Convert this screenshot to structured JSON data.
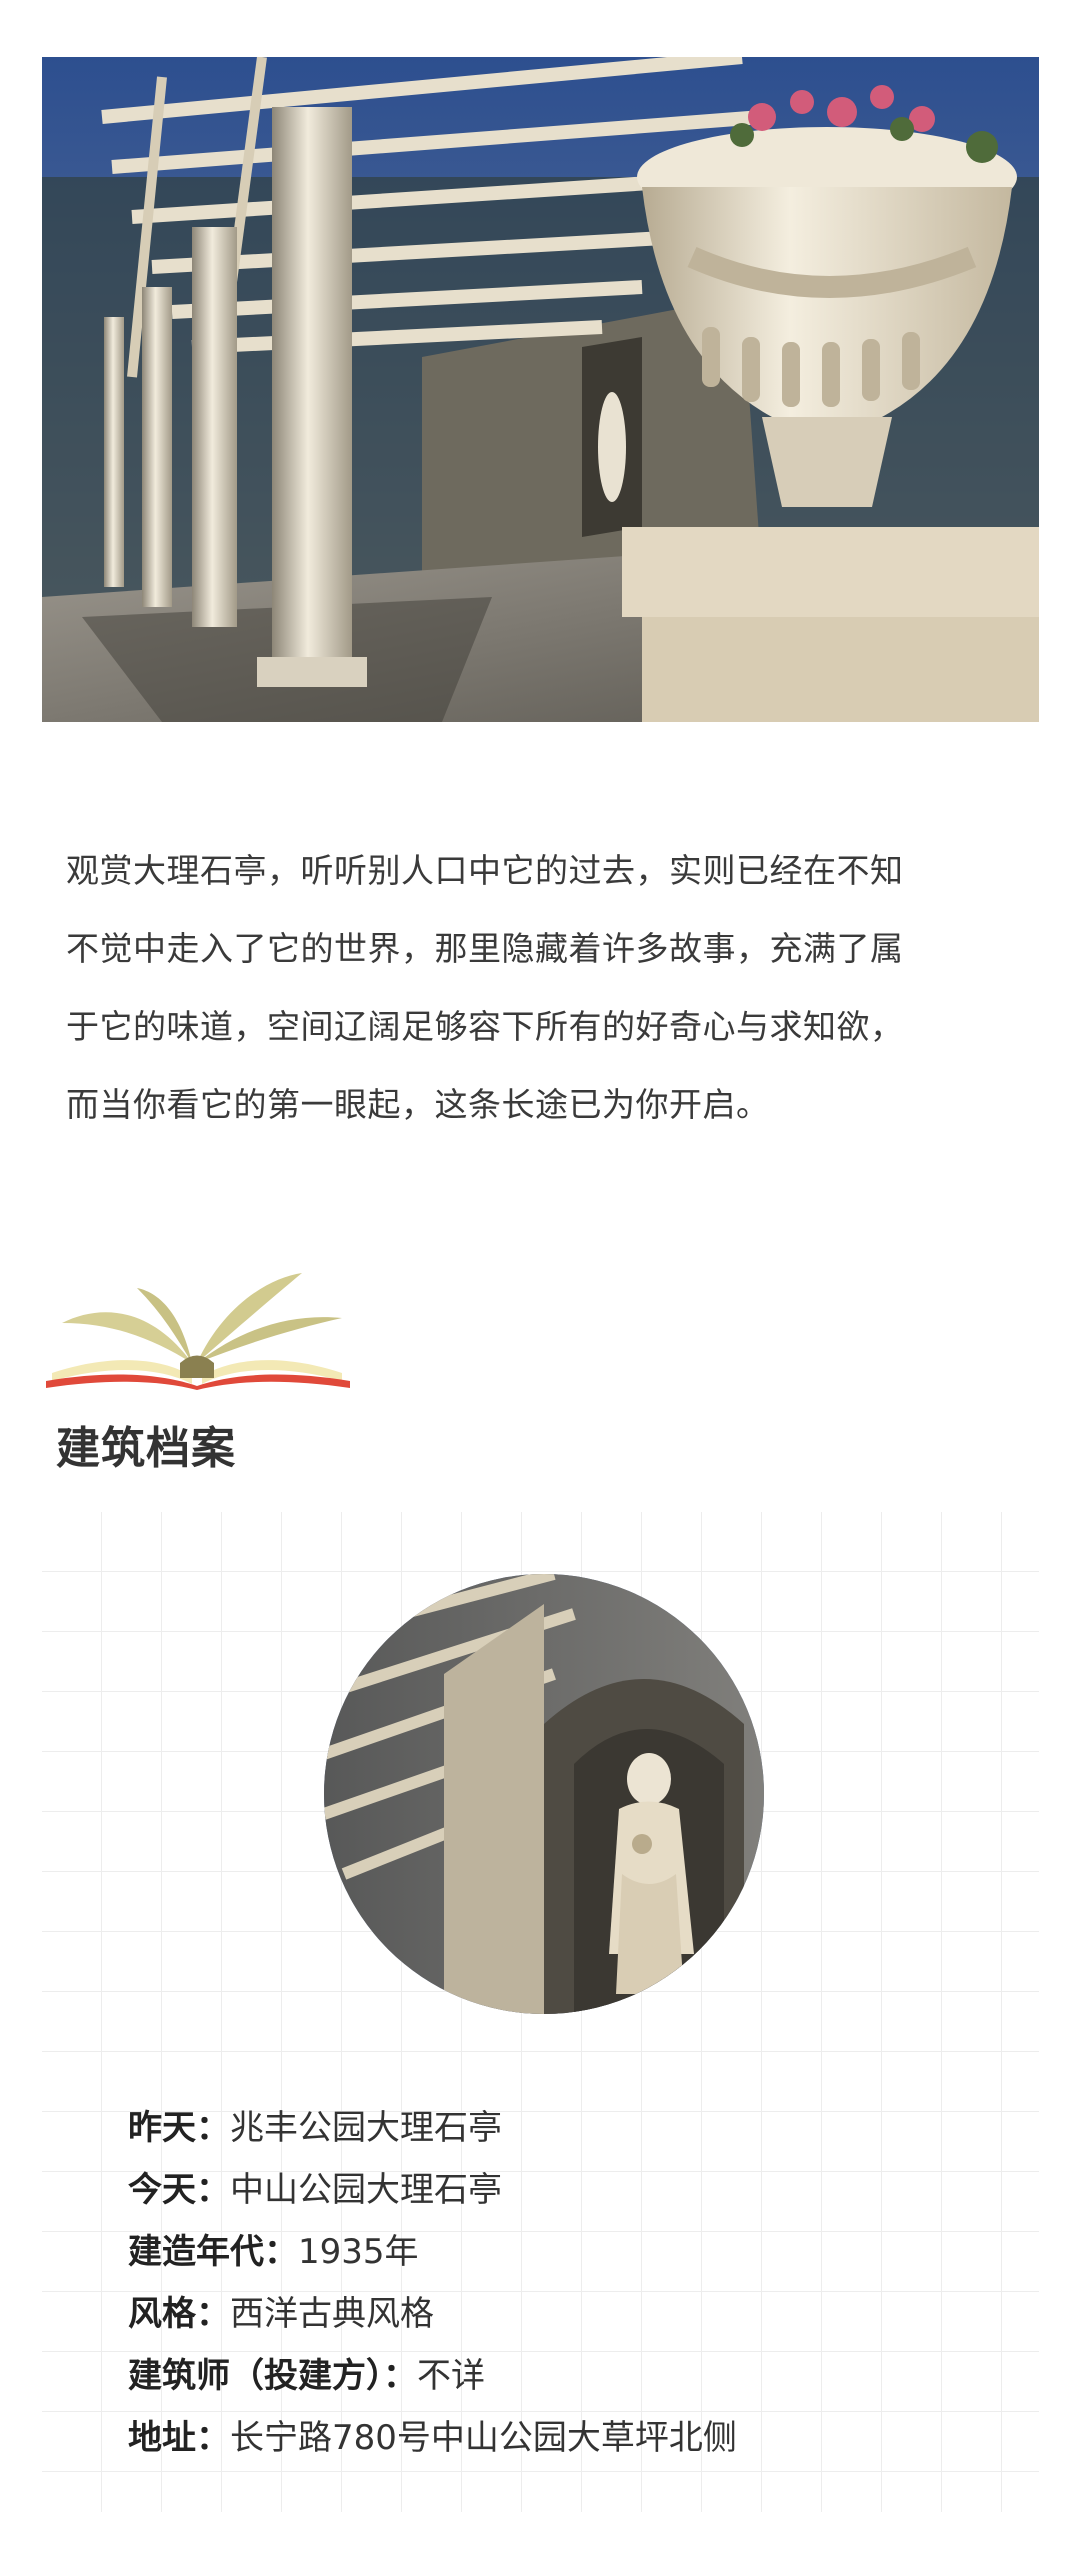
{
  "hero_image": {
    "subject": "marble-pavilion-photo"
  },
  "intro": {
    "lines": [
      "观赏大理石亭，听听别人口中它的过去，实则已经在不知",
      "不觉中走入了它的世界，那里隐藏着许多故事，充满了属",
      "于它的味道，空间辽阔足够容下所有的好奇心与求知欲，",
      "而当你看它的第一眼起，这条长途已为你开启。"
    ]
  },
  "section": {
    "icon": "open-book-icon",
    "title": "建筑档案"
  },
  "profile": {
    "image": {
      "subject": "statue-niche-photo"
    },
    "items": [
      {
        "label": "昨天",
        "value": "兆丰公园大理石亭"
      },
      {
        "label": "今天",
        "value": "中山公园大理石亭"
      },
      {
        "label": "建造年代",
        "value": "1935年"
      },
      {
        "label": "风格",
        "value": "西洋古典风格"
      },
      {
        "label": "建筑师（投建方）",
        "value": "不详"
      },
      {
        "label": "地址",
        "value": "长宁路780号中山公园大草坪北侧"
      }
    ]
  },
  "colors": {
    "book_red": "#e0493a",
    "book_pages": "#f3e9b5",
    "book_leaves": "#cfc88b",
    "grid_line": "#ededed",
    "text": "#333333"
  }
}
